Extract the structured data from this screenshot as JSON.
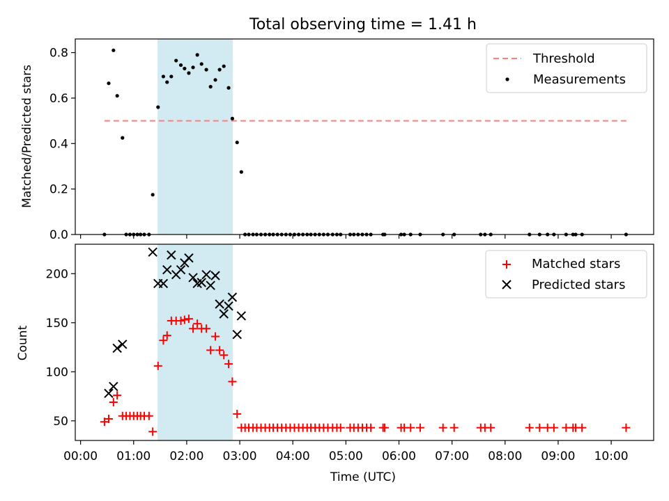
{
  "figure": {
    "title": "Total observing time = 1.41 h"
  },
  "chart_data": [
    {
      "type": "scatter",
      "ylabel": "Matched/Predicted stars",
      "xlabel": "",
      "xlim_hours": [
        -0.1,
        10.8
      ],
      "ylim": [
        0,
        0.86
      ],
      "yticks": [
        0.0,
        0.2,
        0.4,
        0.6,
        0.8
      ],
      "ytick_labels": [
        "0.0",
        "0.2",
        "0.4",
        "0.6",
        "0.8"
      ],
      "legend_position": "top-right",
      "shaded_interval_hours": [
        1.45,
        2.87
      ],
      "shaded_color": "#add8e6",
      "threshold": {
        "name": "Threshold",
        "value": 0.5,
        "x_range_hours": [
          0.45,
          10.3
        ],
        "color": "#ff7f7f",
        "style": "dashed"
      },
      "series": [
        {
          "name": "Measurements",
          "marker": "dot",
          "color": "#000000",
          "x": [
            0.45,
            0.53,
            0.62,
            0.69,
            0.79,
            0.86,
            0.93,
            1.0,
            1.07,
            1.13,
            1.2,
            1.29,
            1.36,
            1.46,
            1.56,
            1.63,
            1.71,
            1.8,
            1.89,
            1.96,
            2.04,
            2.12,
            2.2,
            2.28,
            2.37,
            2.45,
            2.54,
            2.62,
            2.7,
            2.79,
            2.86,
            2.95,
            3.03,
            3.1,
            3.17,
            3.25,
            3.32,
            3.4,
            3.48,
            3.56,
            3.63,
            3.71,
            3.79,
            3.87,
            3.95,
            4.03,
            4.11,
            4.19,
            4.27,
            4.34,
            4.42,
            4.5,
            4.58,
            4.66,
            4.75,
            4.83,
            4.9,
            5.08,
            5.15,
            5.23,
            5.31,
            5.39,
            5.47,
            5.7,
            5.73,
            6.04,
            6.1,
            6.22,
            6.4,
            6.83,
            7.04,
            7.54,
            7.62,
            7.73,
            8.46,
            8.65,
            8.8,
            8.92,
            9.15,
            9.28,
            9.33,
            9.45,
            10.28
          ],
          "y": [
            0.0,
            0.665,
            0.81,
            0.61,
            0.425,
            0.0,
            0.0,
            0.0,
            0.0,
            0.0,
            0.0,
            0.0,
            0.175,
            0.56,
            0.695,
            0.67,
            0.695,
            0.765,
            0.745,
            0.73,
            0.71,
            0.735,
            0.79,
            0.75,
            0.725,
            0.65,
            0.68,
            0.725,
            0.74,
            0.645,
            0.51,
            0.405,
            0.275,
            0.0,
            0.0,
            0.0,
            0.0,
            0.0,
            0.0,
            0.0,
            0.0,
            0.0,
            0.0,
            0.0,
            0.0,
            0.0,
            0.0,
            0.0,
            0.0,
            0.0,
            0.0,
            0.0,
            0.0,
            0.0,
            0.0,
            0.0,
            0.0,
            0.0,
            0.0,
            0.0,
            0.0,
            0.0,
            0.0,
            0.0,
            0.0,
            0.0,
            0.0,
            0.0,
            0.0,
            0.0,
            0.0,
            0.0,
            0.0,
            0.0,
            0.0,
            0.0,
            0.0,
            0.0,
            0.0,
            0.0,
            0.0,
            0.0,
            0.0
          ]
        }
      ]
    },
    {
      "type": "scatter",
      "ylabel": "Count",
      "xlabel": "Time (UTC)",
      "xlim_hours": [
        -0.1,
        10.8
      ],
      "ylim": [
        30,
        230
      ],
      "yticks": [
        50,
        100,
        150,
        200
      ],
      "ytick_labels": [
        "50",
        "100",
        "150",
        "200"
      ],
      "xticks_hours": [
        0,
        1,
        2,
        3,
        4,
        5,
        6,
        7,
        8,
        9,
        10
      ],
      "xtick_labels": [
        "00:00",
        "01:00",
        "02:00",
        "03:00",
        "04:00",
        "05:00",
        "06:00",
        "07:00",
        "08:00",
        "09:00",
        "10:00"
      ],
      "legend_position": "top-right",
      "shaded_interval_hours": [
        1.45,
        2.87
      ],
      "shaded_color": "#add8e6",
      "series": [
        {
          "name": "Matched stars",
          "marker": "plus",
          "color": "#ff0000",
          "x": [
            0.45,
            0.53,
            0.62,
            0.69,
            0.79,
            0.86,
            0.93,
            1.0,
            1.07,
            1.13,
            1.2,
            1.29,
            1.36,
            1.46,
            1.56,
            1.63,
            1.71,
            1.8,
            1.89,
            1.96,
            2.04,
            2.12,
            2.2,
            2.28,
            2.37,
            2.45,
            2.54,
            2.62,
            2.7,
            2.79,
            2.86,
            2.95,
            3.03,
            3.1,
            3.17,
            3.25,
            3.32,
            3.4,
            3.48,
            3.56,
            3.63,
            3.71,
            3.79,
            3.87,
            3.95,
            4.03,
            4.11,
            4.19,
            4.27,
            4.34,
            4.42,
            4.5,
            4.58,
            4.66,
            4.75,
            4.83,
            4.9,
            5.08,
            5.15,
            5.23,
            5.31,
            5.39,
            5.47,
            5.7,
            5.73,
            6.04,
            6.1,
            6.22,
            6.4,
            6.83,
            7.04,
            7.54,
            7.62,
            7.73,
            8.46,
            8.65,
            8.8,
            8.92,
            9.15,
            9.28,
            9.33,
            9.45,
            10.28
          ],
          "y": [
            49,
            52,
            69,
            76,
            55,
            55,
            55,
            55,
            55,
            55,
            55,
            55,
            39,
            106,
            132,
            137,
            152,
            152,
            152,
            153,
            154,
            144,
            149,
            144,
            144,
            122,
            136,
            122,
            117,
            108,
            90,
            57,
            43,
            43,
            43,
            43,
            43,
            43,
            43,
            43,
            43,
            43,
            43,
            43,
            43,
            43,
            43,
            43,
            43,
            43,
            43,
            43,
            43,
            43,
            43,
            43,
            43,
            43,
            43,
            43,
            43,
            43,
            43,
            43,
            43,
            43,
            43,
            43,
            43,
            43,
            43,
            43,
            43,
            43,
            43,
            43,
            43,
            43,
            43,
            43,
            43,
            43,
            43
          ]
        },
        {
          "name": "Predicted stars",
          "marker": "cross",
          "color": "#000000",
          "x": [
            0.53,
            0.62,
            0.69,
            0.79,
            1.36,
            1.46,
            1.56,
            1.63,
            1.71,
            1.8,
            1.89,
            1.96,
            2.04,
            2.12,
            2.2,
            2.28,
            2.37,
            2.45,
            2.54,
            2.62,
            2.7,
            2.79,
            2.86,
            2.95,
            3.03
          ],
          "y": [
            78,
            85,
            124,
            128,
            222,
            190,
            190,
            204,
            219,
            199,
            204,
            211,
            216,
            196,
            190,
            191,
            199,
            188,
            198,
            169,
            159,
            167,
            176,
            138,
            157
          ]
        }
      ]
    }
  ]
}
